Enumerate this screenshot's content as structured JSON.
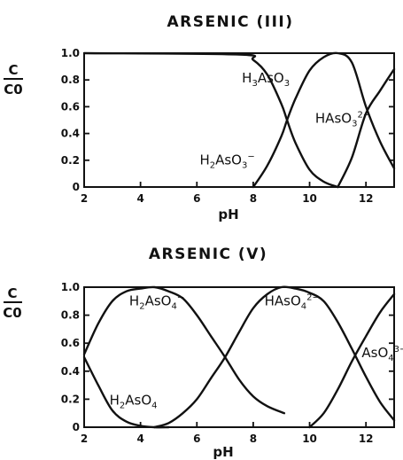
{
  "chart_data": [
    {
      "type": "line",
      "title": "ARSENIC (III)",
      "xlabel": "pH",
      "ylabel_num": "C",
      "ylabel_den": "C0",
      "xlim": [
        2,
        13
      ],
      "ylim": [
        0,
        1.0
      ],
      "xticks": [
        2,
        4,
        6,
        8,
        10,
        12
      ],
      "yticks": [
        0,
        0.2,
        0.4,
        0.6,
        0.8,
        1.0
      ],
      "ytick_labels": [
        "0",
        "0.2",
        "0.4",
        "0.6",
        "0.8",
        "1.0"
      ],
      "grid": false,
      "series": [
        {
          "name": "H3AsO3",
          "label": {
            "parts": [
              [
                "H",
                ""
              ],
              [
                "3",
                "sub"
              ],
              [
                "AsO",
                ""
              ],
              [
                "3",
                "sub"
              ]
            ],
            "x": 7.6,
            "y": 0.78
          },
          "x": [
            2,
            7.5,
            8.0,
            8.5,
            9.0,
            9.2,
            9.5,
            10.0,
            10.5,
            11.0
          ],
          "y": [
            1.0,
            0.99,
            0.95,
            0.84,
            0.62,
            0.5,
            0.33,
            0.13,
            0.04,
            0.0
          ]
        },
        {
          "name": "H2AsO3-",
          "label": {
            "parts": [
              [
                "H",
                ""
              ],
              [
                "2",
                "sub"
              ],
              [
                "AsO",
                ""
              ],
              [
                "3",
                "sub"
              ],
              [
                "−",
                "sup"
              ]
            ],
            "x": 6.1,
            "y": 0.17
          },
          "x": [
            8.0,
            8.5,
            9.0,
            9.2,
            9.5,
            10.0,
            10.5,
            11.0,
            11.5,
            12.0,
            12.5,
            13.0
          ],
          "y": [
            0.0,
            0.16,
            0.38,
            0.5,
            0.66,
            0.87,
            0.97,
            1.0,
            0.93,
            0.6,
            0.34,
            0.14
          ]
        },
        {
          "name": "HAsO3 2-",
          "label": {
            "parts": [
              [
                "HAsO",
                ""
              ],
              [
                "3",
                "sub"
              ],
              [
                "2−",
                "sup"
              ]
            ],
            "x": 10.2,
            "y": 0.48
          },
          "x": [
            11.0,
            11.5,
            12.0,
            12.5,
            13.0
          ],
          "y": [
            0.0,
            0.22,
            0.55,
            0.72,
            0.88
          ]
        }
      ]
    },
    {
      "type": "line",
      "title": "ARSENIC (V)",
      "xlabel": "pH",
      "ylabel_num": "C",
      "ylabel_den": "C0",
      "xlim": [
        2,
        13
      ],
      "ylim": [
        0,
        1.0
      ],
      "xticks": [
        2,
        4,
        6,
        8,
        10,
        12
      ],
      "yticks": [
        0,
        0.2,
        0.4,
        0.6,
        0.8,
        1.0
      ],
      "ytick_labels": [
        "0",
        "0.2",
        "0.4",
        "0.6",
        "0.8",
        "1.0"
      ],
      "grid": false,
      "series": [
        {
          "name": "H2AsO4",
          "label": {
            "parts": [
              [
                "H",
                ""
              ],
              [
                "2",
                "sub"
              ],
              [
                "AsO",
                ""
              ],
              [
                "4",
                "sub"
              ]
            ],
            "x": 2.9,
            "y": 0.16
          },
          "x": [
            2,
            2.5,
            3.0,
            3.5,
            4.0,
            4.5,
            5.0
          ],
          "y": [
            0.5,
            0.3,
            0.12,
            0.04,
            0.01,
            0.0,
            0.0
          ]
        },
        {
          "name": "H2AsO4-",
          "label": {
            "parts": [
              [
                "H",
                ""
              ],
              [
                "2",
                "sub"
              ],
              [
                "AsO",
                ""
              ],
              [
                "4",
                "sub"
              ],
              [
                "−",
                "sup"
              ]
            ],
            "x": 3.6,
            "y": 0.87
          },
          "x": [
            2,
            2.5,
            3.0,
            3.5,
            4.0,
            4.5,
            5.0,
            5.5,
            6.0,
            6.5,
            7.0,
            7.5,
            8.0,
            8.5,
            9.1
          ],
          "y": [
            0.52,
            0.74,
            0.9,
            0.97,
            0.99,
            1.0,
            0.97,
            0.92,
            0.8,
            0.65,
            0.5,
            0.34,
            0.22,
            0.15,
            0.1
          ]
        },
        {
          "name": "HAsO4 2-",
          "label": {
            "parts": [
              [
                "HAsO",
                ""
              ],
              [
                "4",
                "sub"
              ],
              [
                "2−",
                "sup"
              ]
            ],
            "x": 8.4,
            "y": 0.87
          },
          "x": [
            4.5,
            5.0,
            5.5,
            6.0,
            6.5,
            7.0,
            7.5,
            8.0,
            8.5,
            9.0,
            9.5,
            10.0,
            10.5,
            11.0,
            11.5,
            12.0,
            12.5,
            13.0
          ],
          "y": [
            0.0,
            0.03,
            0.1,
            0.2,
            0.35,
            0.5,
            0.68,
            0.85,
            0.95,
            1.0,
            0.99,
            0.96,
            0.9,
            0.75,
            0.56,
            0.36,
            0.18,
            0.05
          ]
        },
        {
          "name": "AsO4 3-",
          "label": {
            "parts": [
              [
                "AsO",
                ""
              ],
              [
                "4",
                "sub"
              ],
              [
                "3−",
                "sup"
              ]
            ],
            "x": 11.85,
            "y": 0.5
          },
          "x": [
            10.0,
            10.5,
            11.0,
            11.5,
            12.0,
            12.5,
            13.0
          ],
          "y": [
            0.0,
            0.1,
            0.27,
            0.47,
            0.65,
            0.82,
            0.95
          ]
        }
      ]
    }
  ]
}
